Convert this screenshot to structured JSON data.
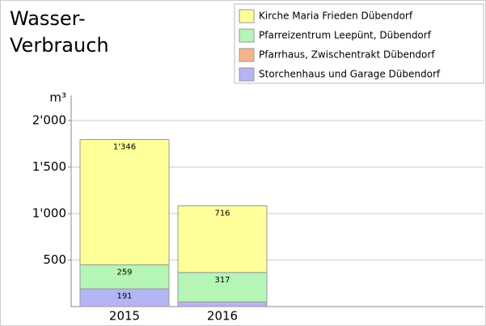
{
  "chart_data": {
    "type": "stacked-bar",
    "title": [
      "Wasser-",
      "Verbrauch"
    ],
    "y_label": "m³",
    "categories": [
      "2015",
      "2016"
    ],
    "series": [
      {
        "name": "Kirche Maria Frieden Dübendorf",
        "color": "#ffff99",
        "values": [
          1346,
          716
        ],
        "value_labels": [
          "1'346",
          "716"
        ]
      },
      {
        "name": "Pfarreizentrum Leepünt, Dübendorf",
        "color": "#b5f5b5",
        "values": [
          259,
          317
        ],
        "value_labels": [
          "259",
          "317"
        ]
      },
      {
        "name": "Pfarrhaus, Zwischentrakt Dübendorf",
        "color": "#f7b48a",
        "values": [
          0,
          0
        ],
        "value_labels": [
          null,
          null
        ]
      },
      {
        "name": "Storchenhaus und Garage Dübendorf",
        "color": "#b5b5f5",
        "values": [
          191,
          50
        ],
        "value_labels": [
          "191",
          null
        ]
      }
    ],
    "ylim": [
      0,
      2270
    ],
    "yticks": [
      {
        "value": 500,
        "label": "500"
      },
      {
        "value": 1000,
        "label": "1'000"
      },
      {
        "value": 1500,
        "label": "1'500"
      },
      {
        "value": 2000,
        "label": "2'000"
      }
    ],
    "grid": true,
    "legend": "top-right"
  }
}
